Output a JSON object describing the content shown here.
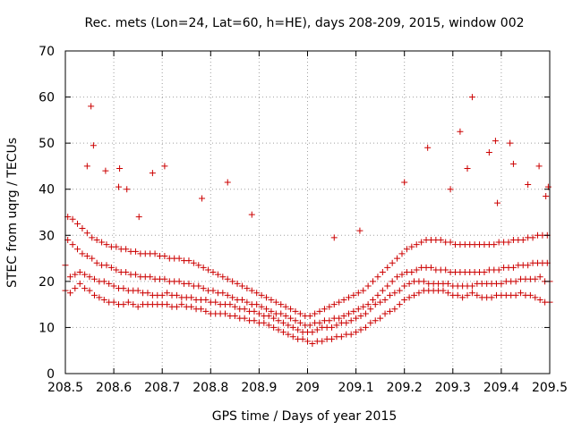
{
  "chart_data": {
    "type": "scatter",
    "title": "Rec. mets (Lon=24, Lat=60, h=HE), days 208-209, 2015, window 002",
    "xlabel": "GPS time / Days of year 2015",
    "ylabel": "STEC from uqrg / TECUs",
    "xlim": [
      208.5,
      209.5
    ],
    "ylim": [
      0,
      70
    ],
    "xticks": [
      208.5,
      208.6,
      208.7,
      208.8,
      208.9,
      209.0,
      209.1,
      209.2,
      209.3,
      209.4,
      209.5
    ],
    "xtick_labels": [
      "208.5",
      "208.6",
      "208.7",
      "208.8",
      "208.9",
      "209",
      "209.1",
      "209.2",
      "209.3",
      "209.4",
      "209.5"
    ],
    "yticks": [
      0,
      10,
      20,
      30,
      40,
      50,
      60,
      70
    ],
    "ytick_labels": [
      "0",
      "10",
      "20",
      "30",
      "40",
      "50",
      "60",
      "70"
    ],
    "grid": true,
    "marker": "+",
    "color": "#cc0000",
    "x": [
      208.5,
      208.51,
      208.52,
      208.53,
      208.54,
      208.55,
      208.56,
      208.57,
      208.58,
      208.59,
      208.6,
      208.61,
      208.62,
      208.63,
      208.64,
      208.65,
      208.66,
      208.67,
      208.68,
      208.69,
      208.7,
      208.71,
      208.72,
      208.73,
      208.74,
      208.75,
      208.76,
      208.77,
      208.78,
      208.79,
      208.8,
      208.81,
      208.82,
      208.83,
      208.84,
      208.85,
      208.86,
      208.87,
      208.88,
      208.89,
      208.9,
      208.91,
      208.92,
      208.93,
      208.94,
      208.95,
      208.96,
      208.97,
      208.98,
      208.99,
      209.0,
      209.01,
      209.02,
      209.03,
      209.04,
      209.05,
      209.06,
      209.07,
      209.08,
      209.09,
      209.1,
      209.11,
      209.12,
      209.13,
      209.14,
      209.15,
      209.16,
      209.17,
      209.18,
      209.19,
      209.2,
      209.21,
      209.22,
      209.23,
      209.24,
      209.25,
      209.26,
      209.27,
      209.28,
      209.29,
      209.3,
      209.31,
      209.32,
      209.33,
      209.34,
      209.35,
      209.36,
      209.37,
      209.38,
      209.39,
      209.4,
      209.41,
      209.42,
      209.43,
      209.44,
      209.45,
      209.46,
      209.47,
      209.48,
      209.49,
      209.5,
      208.5,
      208.51,
      208.52,
      208.53,
      208.54,
      208.55,
      208.56,
      208.57,
      208.58,
      208.59,
      208.6,
      208.61,
      208.62,
      208.63,
      208.64,
      208.65,
      208.66,
      208.67,
      208.68,
      208.69,
      208.7,
      208.71,
      208.72,
      208.73,
      208.74,
      208.75,
      208.76,
      208.77,
      208.78,
      208.79,
      208.8,
      208.81,
      208.82,
      208.83,
      208.84,
      208.85,
      208.86,
      208.87,
      208.88,
      208.89,
      208.9,
      208.91,
      208.92,
      208.93,
      208.94,
      208.95,
      208.96,
      208.97,
      208.98,
      208.99,
      209.0,
      209.01,
      209.02,
      209.03,
      209.04,
      209.05,
      209.06,
      209.07,
      209.08,
      209.09,
      209.1,
      209.11,
      209.12,
      209.13,
      209.14,
      209.15,
      209.16,
      209.17,
      209.18,
      209.19,
      209.2,
      209.21,
      209.22,
      209.23,
      209.24,
      209.25,
      209.26,
      209.27,
      209.28,
      209.29,
      209.3,
      209.31,
      209.32,
      209.33,
      209.34,
      209.35,
      209.36,
      209.37,
      209.38,
      209.39,
      209.4,
      209.41,
      209.42,
      209.43,
      209.44,
      209.45,
      209.46,
      209.47,
      209.48,
      209.49,
      209.5,
      208.505,
      208.515,
      208.525,
      208.535,
      208.545,
      208.555,
      208.565,
      208.575,
      208.585,
      208.595,
      208.605,
      208.615,
      208.625,
      208.635,
      208.645,
      208.655,
      208.665,
      208.675,
      208.685,
      208.695,
      208.705,
      208.715,
      208.725,
      208.735,
      208.745,
      208.755,
      208.765,
      208.775,
      208.785,
      208.795,
      208.805,
      208.815,
      208.825,
      208.835,
      208.845,
      208.855,
      208.865,
      208.875,
      208.885,
      208.895,
      208.905,
      208.915,
      208.925,
      208.935,
      208.945,
      208.955,
      208.965,
      208.975,
      208.985,
      208.995,
      209.005,
      209.015,
      209.025,
      209.035,
      209.045,
      209.055,
      209.065,
      209.075,
      209.085,
      209.095,
      209.105,
      209.115,
      209.125,
      209.135,
      209.145,
      209.155,
      209.165,
      209.175,
      209.185,
      209.195,
      209.205,
      209.215,
      209.225,
      209.235,
      209.245,
      209.255,
      209.265,
      209.275,
      209.285,
      209.295,
      209.305,
      209.315,
      209.325,
      209.335,
      209.345,
      209.355,
      209.365,
      209.375,
      209.385,
      209.395,
      209.405,
      209.415,
      209.425,
      209.435,
      209.445,
      209.455,
      209.465,
      209.475,
      209.485,
      209.495,
      208.505,
      208.515,
      208.525,
      208.535,
      208.545,
      208.555,
      208.565,
      208.575,
      208.585,
      208.595,
      208.605,
      208.615,
      208.625,
      208.635,
      208.645,
      208.655,
      208.665,
      208.675,
      208.685,
      208.695,
      208.705,
      208.715,
      208.725,
      208.735,
      208.745,
      208.755,
      208.765,
      208.775,
      208.785,
      208.795,
      208.805,
      208.815,
      208.825,
      208.835,
      208.845,
      208.855,
      208.865,
      208.875,
      208.885,
      208.895,
      208.905,
      208.915,
      208.925,
      208.935,
      208.945,
      208.955,
      208.965,
      208.975,
      208.985,
      208.995,
      209.005,
      209.015,
      209.025,
      209.035,
      209.045,
      209.055,
      209.065,
      209.075,
      209.085,
      209.095,
      209.105,
      209.115,
      209.125,
      209.135,
      209.145,
      209.155,
      209.165,
      209.175,
      209.185,
      209.195,
      209.205,
      209.215,
      209.225,
      209.235,
      209.245,
      209.255,
      209.265,
      209.275,
      209.285,
      209.295,
      209.305,
      209.315,
      209.325,
      209.335,
      209.345,
      209.355,
      209.365,
      209.375,
      209.385,
      209.395,
      209.405,
      209.415,
      209.425,
      209.435,
      209.445,
      209.455,
      209.465,
      209.475,
      209.485,
      209.495,
      208.553,
      208.558,
      208.545,
      208.583,
      208.61,
      208.612,
      208.627,
      208.652,
      208.68,
      208.705,
      208.782,
      208.835,
      208.885,
      209.055,
      209.108,
      209.2,
      209.248,
      209.295,
      209.315,
      209.33,
      209.34,
      209.375,
      209.388,
      209.392,
      209.418,
      209.425,
      209.455,
      209.478,
      209.492,
      209.497
    ],
    "y": [
      18,
      17.5,
      18.5,
      19.5,
      18.5,
      18,
      17,
      16.5,
      16,
      15.5,
      15.5,
      15,
      15,
      15.5,
      15,
      14.5,
      15,
      15,
      15,
      15,
      15,
      15,
      14.5,
      14.5,
      15,
      14.5,
      14.5,
      14,
      14,
      13.5,
      13,
      13,
      13,
      13,
      12.5,
      12.5,
      12,
      12,
      11.5,
      11.5,
      11,
      11,
      10.5,
      10,
      9.5,
      9,
      8.5,
      8,
      7.5,
      7.5,
      7,
      6.5,
      7,
      7,
      7.5,
      7.5,
      8,
      8,
      8.5,
      8.5,
      9,
      9.5,
      10,
      11,
      11.5,
      12,
      13,
      13.5,
      14,
      15,
      16,
      16.5,
      17,
      17.5,
      18,
      18,
      18,
      18,
      18,
      17.5,
      17,
      17,
      16.5,
      17,
      17.5,
      17,
      16.5,
      16.5,
      16.5,
      17,
      17,
      17,
      17,
      17,
      17.5,
      17,
      17,
      16.5,
      16,
      15.5,
      15.5,
      23.5,
      21,
      21.5,
      22,
      21.5,
      21,
      20.5,
      20,
      20,
      19.5,
      19,
      18.5,
      18.5,
      18,
      18,
      18,
      17.5,
      17.5,
      17,
      17,
      17,
      17.5,
      17,
      17,
      16.5,
      16.5,
      16.5,
      16,
      16,
      16,
      15.5,
      15.5,
      15,
      15,
      15,
      14.5,
      14,
      14,
      13.5,
      13.5,
      13,
      12.5,
      12.5,
      12,
      11.5,
      11,
      10.5,
      10,
      9.5,
      9,
      9,
      9,
      9.5,
      10,
      10,
      10,
      10.5,
      11,
      11,
      11.5,
      12,
      12.5,
      13,
      14,
      15,
      15.5,
      16,
      17,
      17.5,
      18,
      19,
      19.5,
      20,
      20,
      20,
      19.5,
      19.5,
      19.5,
      19.5,
      19.5,
      19,
      19,
      19,
      19,
      19,
      19.5,
      19.5,
      19.5,
      19.5,
      19.5,
      19.5,
      20,
      20,
      20,
      20.5,
      20.5,
      20.5,
      20.5,
      21,
      20,
      20,
      29,
      28,
      27,
      26,
      25.5,
      25,
      24,
      23.5,
      23.5,
      23,
      22.5,
      22,
      22,
      21.5,
      21.5,
      21,
      21,
      21,
      20.5,
      20.5,
      20.5,
      20,
      20,
      20,
      19.5,
      19.5,
      19,
      19,
      18.5,
      18,
      18,
      17.5,
      17.5,
      17,
      16.5,
      16,
      16,
      15.5,
      15,
      15,
      14.5,
      14,
      13.5,
      13,
      13,
      12.5,
      12,
      11.5,
      11,
      10.5,
      10.5,
      11,
      11,
      11.5,
      11.5,
      12,
      12,
      12.5,
      13,
      13.5,
      14,
      14.5,
      15,
      16,
      17,
      18,
      19,
      20,
      21,
      21.5,
      22,
      22,
      22.5,
      23,
      23,
      23,
      22.5,
      22.5,
      22.5,
      22,
      22,
      22,
      22,
      22,
      22,
      22,
      22,
      22.5,
      22.5,
      22.5,
      23,
      23,
      23,
      23.5,
      23.5,
      23.5,
      24,
      24,
      24,
      24,
      34,
      33.5,
      32.5,
      31.5,
      30.5,
      29.5,
      29,
      28.5,
      28,
      27.5,
      27.5,
      27,
      27,
      26.5,
      26.5,
      26,
      26,
      26,
      26,
      25.5,
      25.5,
      25,
      25,
      25,
      24.5,
      24.5,
      24,
      23.5,
      23,
      22.5,
      22,
      21.5,
      21,
      20.5,
      20,
      19.5,
      19,
      18.5,
      18,
      17.5,
      17,
      16.5,
      16,
      15.5,
      15,
      14.5,
      14,
      13.5,
      13,
      12.5,
      12.5,
      13,
      13.5,
      14,
      14.5,
      15,
      15.5,
      16,
      16.5,
      17,
      17.5,
      18,
      19,
      20,
      21,
      22,
      23,
      24,
      25,
      26,
      27,
      27.5,
      28,
      28.5,
      29,
      29,
      29,
      29,
      28.5,
      28.5,
      28,
      28,
      28,
      28,
      28,
      28,
      28,
      28,
      28,
      28.5,
      28.5,
      28.5,
      29,
      29,
      29,
      29.5,
      29.5,
      30,
      30,
      30,
      58,
      49.5,
      45,
      44,
      40.5,
      44.5,
      40,
      34,
      43.5,
      45,
      38,
      41.5,
      34.5,
      29.5,
      31,
      41.5,
      49,
      40,
      52.5,
      44.5,
      60,
      48,
      50.5,
      37,
      50,
      45.5,
      41,
      45,
      38.5,
      40.5
    ]
  }
}
